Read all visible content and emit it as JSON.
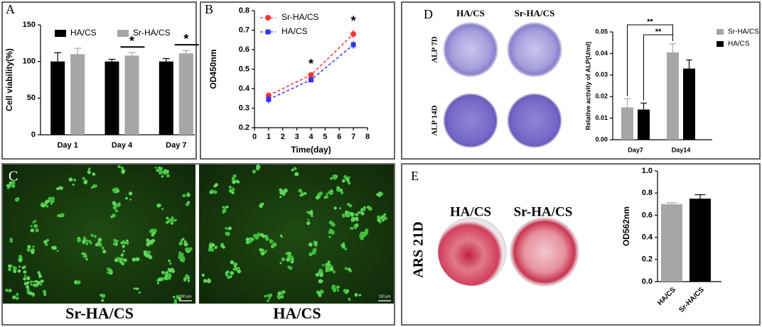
{
  "chart_data": [
    {
      "type": "bar",
      "panel": "A",
      "ylabel": "Cell viability(%)",
      "categories": [
        "Day 1",
        "Day 4",
        "Day 7"
      ],
      "series": [
        {
          "name": "HA/CS",
          "color": "#000000",
          "values": [
            100,
            100,
            100
          ],
          "errors": [
            12,
            3,
            4
          ]
        },
        {
          "name": "Sr-HA/CS",
          "color": "#a6a6a6",
          "values": [
            110,
            108,
            111
          ],
          "errors": [
            8,
            4,
            4
          ]
        }
      ],
      "ylim": [
        0,
        150
      ],
      "yticks": [
        0,
        50,
        100,
        150
      ],
      "significance": [
        null,
        "*",
        "*"
      ],
      "legend": "top"
    },
    {
      "type": "line",
      "panel": "B",
      "xlabel": "Time(day)",
      "ylabel": "OD450nm",
      "x": [
        1,
        4,
        7
      ],
      "series": [
        {
          "name": "Sr-HA/CS",
          "color": "#ff3333",
          "marker": "circle",
          "values": [
            0.365,
            0.47,
            0.68
          ],
          "errors": [
            0.015,
            0.01,
            0.02
          ]
        },
        {
          "name": "HA/CS",
          "color": "#3333ff",
          "marker": "square",
          "values": [
            0.345,
            0.445,
            0.625
          ],
          "errors": [
            0.02,
            0.01,
            0.02
          ]
        }
      ],
      "xlim": [
        0,
        8
      ],
      "xticks": [
        0,
        1,
        2,
        3,
        4,
        5,
        6,
        7,
        8
      ],
      "ylim": [
        0.2,
        0.8
      ],
      "yticks": [
        0.2,
        0.3,
        0.4,
        0.5,
        0.6,
        0.7,
        0.8
      ],
      "significance": [
        null,
        "*",
        "*"
      ],
      "legend": "top-left"
    },
    {
      "type": "bar",
      "ylabel": "Relative activity of ALP(U/ml)",
      "categories": [
        "Day7",
        "Day14"
      ],
      "series": [
        {
          "name": "Sr-HA/CS",
          "color": "#a6a6a6",
          "values": [
            0.015,
            0.0405
          ],
          "errors": [
            0.004,
            0.004
          ]
        },
        {
          "name": "HA/CS",
          "color": "#000000",
          "values": [
            0.014,
            0.033
          ],
          "errors": [
            0.003,
            0.004
          ]
        }
      ],
      "ylim": [
        0,
        0.05
      ],
      "yticks": [
        {
          "value": 0,
          "label": "0.00"
        },
        0.01,
        0.02,
        0.03,
        0.04,
        0.05
      ],
      "significance": [
        "**",
        "**"
      ],
      "legend": "right"
    },
    {
      "type": "bar",
      "ylabel": "OD562nm",
      "categories": [
        "HA/CS",
        "Sr-HA/CS"
      ],
      "values": [
        0.7,
        0.75
      ],
      "errors": [
        0.012,
        0.035
      ],
      "colors": [
        "#a6a6a6",
        "#000000"
      ],
      "ylim": [
        0,
        1.0
      ],
      "yticks": [
        {
          "value": 0,
          "label": "0.0"
        },
        0.2,
        0.4,
        0.6,
        0.8,
        {
          "value": 1.0,
          "label": "1.0"
        }
      ]
    }
  ],
  "micrographs": {
    "panel": "C",
    "labels": [
      "Sr-HA/CS",
      "HA/CS"
    ],
    "scale_bar": "100 μm"
  },
  "alp_staining": {
    "panel": "D",
    "columns": [
      "HA/CS",
      "Sr-HA/CS"
    ],
    "rows": [
      "ALP 7D",
      "ALP 14D"
    ]
  },
  "ars_staining": {
    "panel": "E",
    "columns": [
      "HA/CS",
      "Sr-HA/CS"
    ],
    "row": "ARS 21D"
  }
}
